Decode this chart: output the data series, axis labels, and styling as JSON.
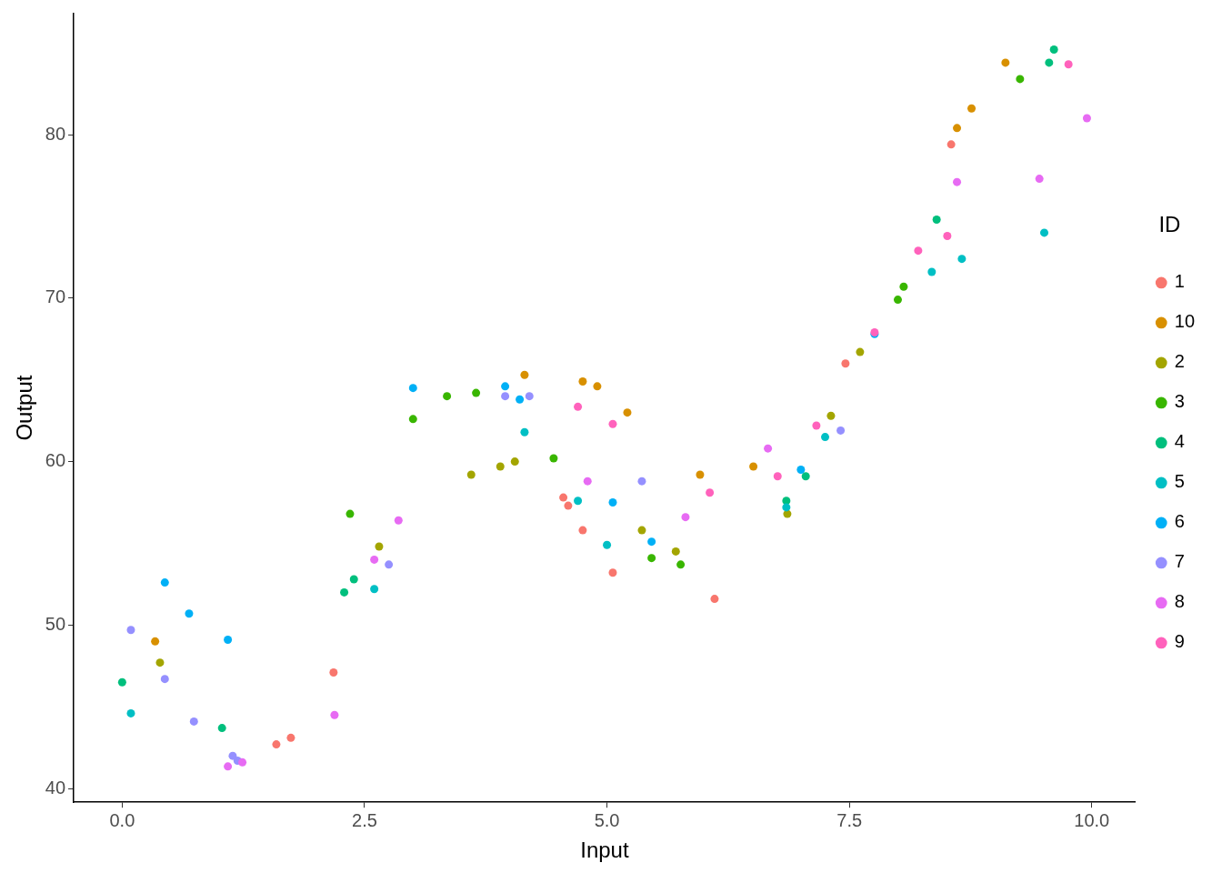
{
  "chart_data": {
    "type": "scatter",
    "xlabel": "Input",
    "ylabel": "Output",
    "legend_title": "ID",
    "legend": "right",
    "grid": false,
    "marker": "circle",
    "xlim": [
      -0.5,
      10.45
    ],
    "ylim": [
      39.16,
      87.4
    ],
    "xticks": [
      {
        "value": 0,
        "label": "0.0"
      },
      {
        "value": 2.5,
        "label": "2.5"
      },
      {
        "value": 5,
        "label": "5.0"
      },
      {
        "value": 7.5,
        "label": "7.5"
      },
      {
        "value": 10,
        "label": "10.0"
      }
    ],
    "yticks": [
      40,
      50,
      60,
      70,
      80
    ],
    "series": [
      {
        "name": "1",
        "color": "#f8766d",
        "x": [
          1.59,
          1.74,
          2.18,
          4.55,
          4.6,
          4.75,
          5.06,
          6.11,
          7.46,
          8.55
        ],
        "values": [
          42.7,
          43.1,
          47.1,
          57.8,
          57.3,
          55.8,
          53.2,
          51.6,
          66.0,
          79.4
        ]
      },
      {
        "name": "10",
        "color": "#d89000",
        "x": [
          0.34,
          4.15,
          4.75,
          4.9,
          5.21,
          5.96,
          6.51,
          8.61,
          8.76,
          9.11
        ],
        "values": [
          49.0,
          65.3,
          64.9,
          64.6,
          63.0,
          59.2,
          59.7,
          80.4,
          81.6,
          84.4
        ]
      },
      {
        "name": "2",
        "color": "#a3a500",
        "x": [
          0.39,
          2.65,
          3.6,
          3.9,
          4.05,
          5.36,
          5.71,
          6.86,
          7.31,
          7.61
        ],
        "values": [
          47.7,
          54.8,
          59.2,
          59.7,
          60.0,
          55.8,
          54.5,
          56.8,
          62.8,
          66.7
        ]
      },
      {
        "name": "3",
        "color": "#39b600",
        "x": [
          2.35,
          3.0,
          3.35,
          3.65,
          4.45,
          5.46,
          5.76,
          8.0,
          8.06,
          9.26
        ],
        "values": [
          56.8,
          62.6,
          64.0,
          64.2,
          60.2,
          54.1,
          53.7,
          69.9,
          70.7,
          83.4
        ]
      },
      {
        "name": "4",
        "color": "#00bf7d",
        "x": [
          0.0,
          1.03,
          2.29,
          2.39,
          6.85,
          7.05,
          8.4,
          9.56,
          9.61
        ],
        "values": [
          46.5,
          43.7,
          52.0,
          52.8,
          57.6,
          59.1,
          74.8,
          84.4,
          85.2
        ]
      },
      {
        "name": "5",
        "color": "#00bfc4",
        "x": [
          0.09,
          2.6,
          4.15,
          4.7,
          5.0,
          6.85,
          7.25,
          8.35,
          8.66,
          9.51
        ],
        "values": [
          44.6,
          52.2,
          61.8,
          57.6,
          54.9,
          57.2,
          61.5,
          71.6,
          72.4,
          74.0
        ]
      },
      {
        "name": "6",
        "color": "#00b0f6",
        "x": [
          0.44,
          0.69,
          1.09,
          3.0,
          3.95,
          4.1,
          5.06,
          5.46,
          7.0,
          7.76
        ],
        "values": [
          52.6,
          50.7,
          49.1,
          64.5,
          64.6,
          63.8,
          57.5,
          55.1,
          59.5,
          67.8
        ]
      },
      {
        "name": "7",
        "color": "#9590ff",
        "x": [
          0.09,
          0.44,
          0.74,
          1.14,
          1.19,
          2.75,
          3.95,
          4.2,
          5.36,
          7.41
        ],
        "values": [
          49.7,
          46.7,
          44.1,
          42.0,
          41.7,
          53.7,
          64.0,
          64.0,
          58.8,
          61.9
        ]
      },
      {
        "name": "8",
        "color": "#e76bf3",
        "x": [
          1.09,
          1.24,
          2.19,
          2.6,
          2.85,
          4.8,
          5.81,
          6.66,
          8.61,
          9.46,
          9.95
        ],
        "values": [
          41.35,
          41.6,
          44.5,
          54.0,
          56.4,
          58.8,
          56.6,
          60.8,
          77.1,
          77.3,
          81.0
        ]
      },
      {
        "name": "9",
        "color": "#ff62bc",
        "x": [
          4.7,
          5.06,
          6.06,
          6.76,
          7.16,
          7.76,
          8.21,
          8.51,
          9.76
        ],
        "values": [
          63.35,
          62.3,
          58.1,
          59.1,
          62.2,
          67.9,
          72.9,
          73.8,
          84.3
        ]
      }
    ]
  }
}
